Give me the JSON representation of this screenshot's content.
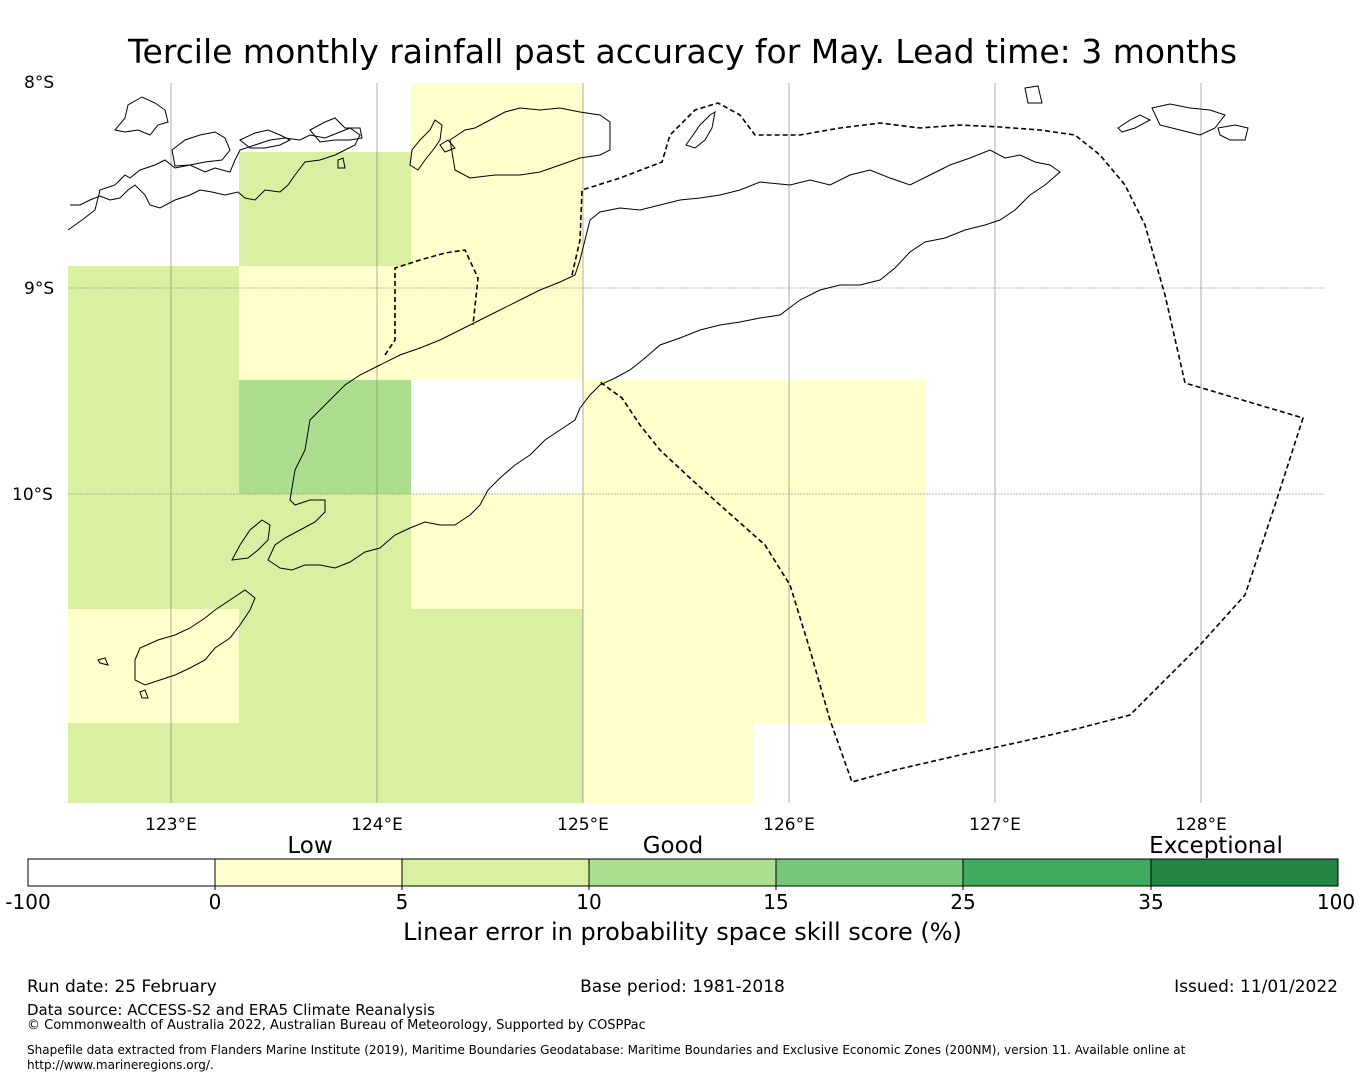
{
  "title": "Tercile monthly rainfall past accuracy for May. Lead time: 3 months",
  "map": {
    "lat_labels": [
      "8°S",
      "9°S",
      "10°S"
    ],
    "lon_labels": [
      "123°E",
      "124°E",
      "125°E",
      "126°E",
      "127°E",
      "128°E"
    ],
    "grid_cells": [
      {
        "lon_range": [
          123.3,
          124.2
        ],
        "lat_range": [
          -8.3,
          -8.9
        ],
        "category": "5-10"
      },
      {
        "lon_range": [
          124.2,
          125.0
        ],
        "lat_range": [
          -8.0,
          -8.9
        ],
        "category": "0-5"
      },
      {
        "lon_range": [
          122.5,
          123.3
        ],
        "lat_range": [
          -8.9,
          -10.6
        ],
        "category": "5-10"
      },
      {
        "lon_range": [
          123.3,
          124.2
        ],
        "lat_range": [
          -8.9,
          -9.45
        ],
        "category": "0-5"
      },
      {
        "lon_range": [
          124.2,
          125.0
        ],
        "lat_range": [
          -8.9,
          -9.45
        ],
        "category": "0-5"
      },
      {
        "lon_range": [
          123.3,
          124.2
        ],
        "lat_range": [
          -9.45,
          -10.0
        ],
        "category": "10-15"
      },
      {
        "lon_range": [
          123.3,
          124.2
        ],
        "lat_range": [
          -10.0,
          -10.6
        ],
        "category": "5-10"
      },
      {
        "lon_range": [
          124.2,
          125.0
        ],
        "lat_range": [
          -10.0,
          -10.6
        ],
        "category": "0-5"
      },
      {
        "lon_range": [
          125.0,
          126.65
        ],
        "lat_range": [
          -9.45,
          -11.15
        ],
        "category": "0-5"
      },
      {
        "lon_range": [
          122.5,
          123.3
        ],
        "lat_range": [
          -10.6,
          -11.15
        ],
        "category": "0-5"
      },
      {
        "lon_range": [
          123.3,
          125.0
        ],
        "lat_range": [
          -10.6,
          -11.5
        ],
        "category": "5-10"
      },
      {
        "lon_range": [
          122.5,
          123.3
        ],
        "lat_range": [
          -11.15,
          -11.5
        ],
        "category": "5-10"
      },
      {
        "lon_range": [
          125.0,
          125.85
        ],
        "lat_range": [
          -11.15,
          -11.5
        ],
        "category": "0-5"
      }
    ]
  },
  "colorbar": {
    "categories": [
      "Low",
      "Good",
      "Exceptional"
    ],
    "ticks": [
      "-100",
      "0",
      "5",
      "10",
      "15",
      "25",
      "35",
      "100"
    ],
    "colors": [
      "#ffffff",
      "#ffffcc",
      "#d9f0a3",
      "#addd8e",
      "#78c679",
      "#41ab5d",
      "#238443"
    ],
    "label": "Linear error in probability space skill score (%)"
  },
  "footer": {
    "run_date": "Run date: 25 February",
    "base_period": "Base period: 1981-2018",
    "issued": "Issued: 11/01/2022",
    "data_source": "Data source: ACCESS-S2 and ERA5 Climate Reanalysis",
    "copyright": "© Commonwealth of Australia 2022, Australian Bureau of Meteorology, Supported by COSPPac",
    "shapefile_line1": "Shapefile data extracted from Flanders Marine Institute (2019), Maritime Boundaries Geodatabase: Maritime Boundaries and Exclusive Economic Zones (200NM), version 11. Available online at",
    "shapefile_line2": "http://www.marineregions.org/."
  }
}
